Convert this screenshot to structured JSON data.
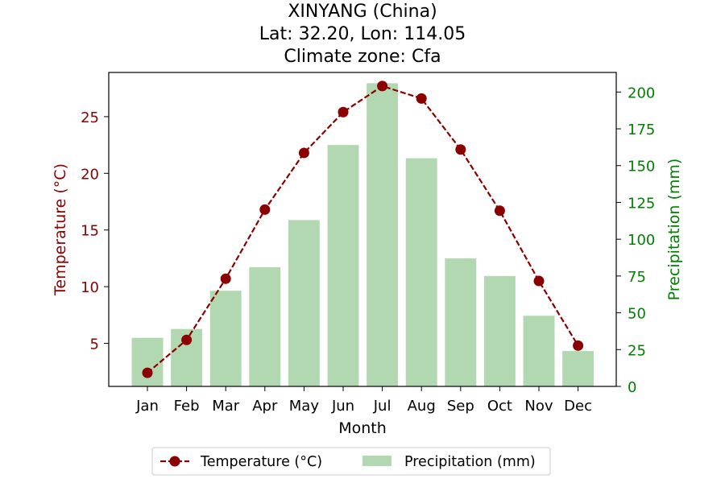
{
  "chart_data": {
    "type": "bar+line",
    "title": [
      "XINYANG (China)",
      "Lat: 32.20, Lon: 114.05",
      "Climate zone: Cfa"
    ],
    "xlabel": "Month",
    "categories": [
      "Jan",
      "Feb",
      "Mar",
      "Apr",
      "May",
      "Jun",
      "Jul",
      "Aug",
      "Sep",
      "Oct",
      "Nov",
      "Dec"
    ],
    "series": [
      {
        "name": "Temperature (°C)",
        "type": "line",
        "axis": "left",
        "color": "#8b0000",
        "values": [
          2.4,
          5.3,
          10.7,
          16.8,
          21.8,
          25.4,
          27.7,
          26.6,
          22.1,
          16.7,
          10.5,
          4.8
        ]
      },
      {
        "name": "Precipitation (mm)",
        "type": "bar",
        "axis": "right",
        "color": "#b2d8b2",
        "values": [
          33,
          39,
          65,
          81,
          113,
          164,
          206,
          155,
          87,
          75,
          48,
          24
        ]
      }
    ],
    "y_left": {
      "label": "Temperature (°C)",
      "ticks": [
        5,
        10,
        15,
        20,
        25
      ],
      "range": [
        1.2,
        28.9
      ],
      "color": "#8b0000"
    },
    "y_right": {
      "label": "Precipitation (mm)",
      "ticks": [
        0,
        25,
        50,
        75,
        100,
        125,
        150,
        175,
        200
      ],
      "range": [
        0,
        213.3
      ],
      "color": "#008000"
    },
    "legend": {
      "placement": "bottom-center",
      "entries": [
        "Temperature (°C)",
        "Precipitation (mm)"
      ]
    },
    "grid": false
  }
}
